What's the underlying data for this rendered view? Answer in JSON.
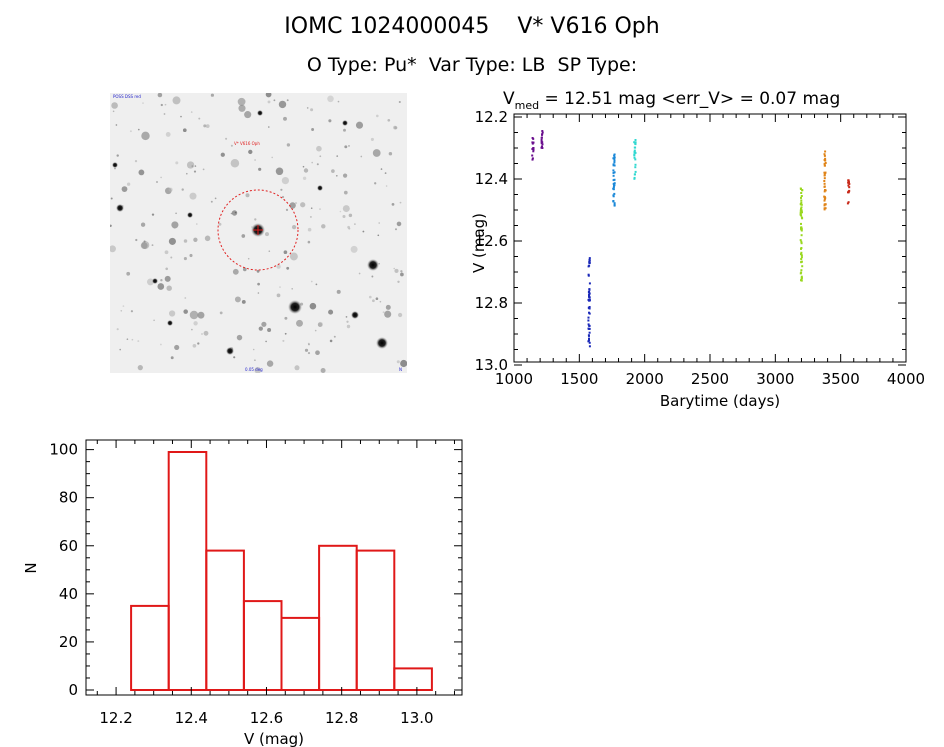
{
  "title": {
    "line1": "IOMC 1024000045    V* V616 Oph",
    "line2": "O Type: Pu*  Var Type: LB  SP Type:"
  },
  "image_panel": {
    "top_left_label": "POSS DSS red",
    "marker_label": "V* V616 Oph",
    "bottom_label": "0.05 deg",
    "north_label": "N"
  },
  "chart_data": [
    {
      "type": "scatter",
      "title_prefix": "V",
      "title_subscript": "med",
      "title_rest": " = 12.51 mag <err_V> = 0.07 mag",
      "xlabel": "Barytime (days)",
      "ylabel": "V (mag)",
      "xlim": [
        1000,
        4000
      ],
      "ylim": [
        13.0,
        12.2
      ],
      "xticks": [
        "1000",
        "1500",
        "2000",
        "2500",
        "3000",
        "3500",
        "4000"
      ],
      "yticks": [
        "12.2",
        "12.4",
        "12.6",
        "12.8",
        "13.0"
      ],
      "groups": [
        {
          "x": 1145,
          "ymin": 12.26,
          "ymax": 12.34,
          "color": "#6a0f8e"
        },
        {
          "x": 1215,
          "ymin": 12.24,
          "ymax": 12.32,
          "color": "#6a0f8e"
        },
        {
          "x": 1575,
          "ymin": 12.65,
          "ymax": 12.94,
          "color": "#1a28b8"
        },
        {
          "x": 1765,
          "ymin": 12.32,
          "ymax": 12.5,
          "color": "#1a88d8"
        },
        {
          "x": 1925,
          "ymin": 12.27,
          "ymax": 12.4,
          "color": "#30d8d0"
        },
        {
          "x": 3200,
          "ymin": 12.43,
          "ymax": 12.73,
          "color": "#9ad820"
        },
        {
          "x": 3380,
          "ymin": 12.31,
          "ymax": 12.51,
          "color": "#e08418"
        },
        {
          "x": 3560,
          "ymin": 12.4,
          "ymax": 12.48,
          "color": "#c82818"
        }
      ]
    },
    {
      "type": "bar",
      "xlabel": "V (mag)",
      "ylabel": "N",
      "xlim": [
        12.12,
        13.12
      ],
      "ylim": [
        0,
        104
      ],
      "xticks": [
        "12.2",
        "12.4",
        "12.6",
        "12.8",
        "13.0"
      ],
      "yticks": [
        "0",
        "20",
        "40",
        "60",
        "80",
        "100"
      ],
      "bin_edges": [
        12.24,
        12.34,
        12.44,
        12.54,
        12.64,
        12.74,
        12.84,
        12.94,
        13.04
      ],
      "values": [
        35,
        99,
        58,
        37,
        30,
        60,
        58,
        9
      ],
      "color": "#e01818"
    }
  ]
}
